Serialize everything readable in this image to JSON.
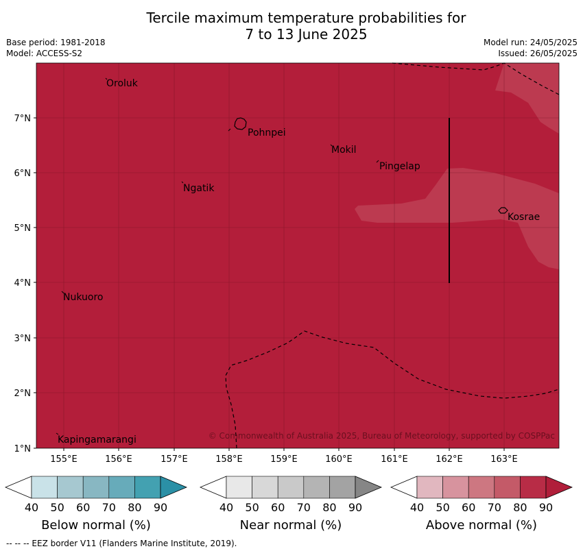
{
  "title_line1": "Tercile maximum temperature probabilities for",
  "title_line2": "7 to 13 June 2025",
  "base_period": "Base period: 1981-2018",
  "model": "Model: ACCESS-S2",
  "model_run": "Model run: 24/05/2025",
  "issued": "Issued: 26/05/2025",
  "copyright": "© Commonwealth of Australia 2025, Bureau of Meteorology, supported by COSPPac",
  "footer": "--  --  -- EEZ border V11 (Flanders Marine Institute, 2019).",
  "lat_ticks": [
    "7°N",
    "6°N",
    "5°N",
    "4°N",
    "3°N",
    "2°N",
    "1°N"
  ],
  "lon_ticks": [
    "155°E",
    "156°E",
    "157°E",
    "158°E",
    "159°E",
    "160°E",
    "161°E",
    "162°E",
    "163°E"
  ],
  "places": {
    "oroluk": "Oroluk",
    "pohnpei": "Pohnpei",
    "mokil": "Mokil",
    "pingelap": "Pingelap",
    "ngatik": "Ngatik",
    "kosrae": "Kosrae",
    "nukuoro": "Nukuoro",
    "kapingamarangi": "Kapingamarangi"
  },
  "colorbars": [
    {
      "name": "Below normal (%)",
      "ticks": [
        "40",
        "50",
        "60",
        "70",
        "80",
        "90"
      ],
      "colors": [
        "#ffffff",
        "#c9e2e8",
        "#a6c8d0",
        "#88b7c2",
        "#67abba",
        "#43a1b1",
        "#2b90a6"
      ]
    },
    {
      "name": "Near normal (%)",
      "ticks": [
        "40",
        "50",
        "60",
        "70",
        "80",
        "90"
      ],
      "colors": [
        "#ffffff",
        "#e8e8e8",
        "#d8d8d8",
        "#c9c9c9",
        "#b4b4b4",
        "#a3a3a3",
        "#868686"
      ]
    },
    {
      "name": "Above normal (%)",
      "ticks": [
        "40",
        "50",
        "60",
        "70",
        "80",
        "90"
      ],
      "colors": [
        "#ffffff",
        "#e1b7bf",
        "#d7939e",
        "#cd7781",
        "#c45a68",
        "#b82c46",
        "#b01e3a"
      ]
    }
  ],
  "colors": {
    "map_fill": "#b31e3a",
    "lighter_fill": "#bc3a50",
    "grid": "#6b0f1f"
  }
}
